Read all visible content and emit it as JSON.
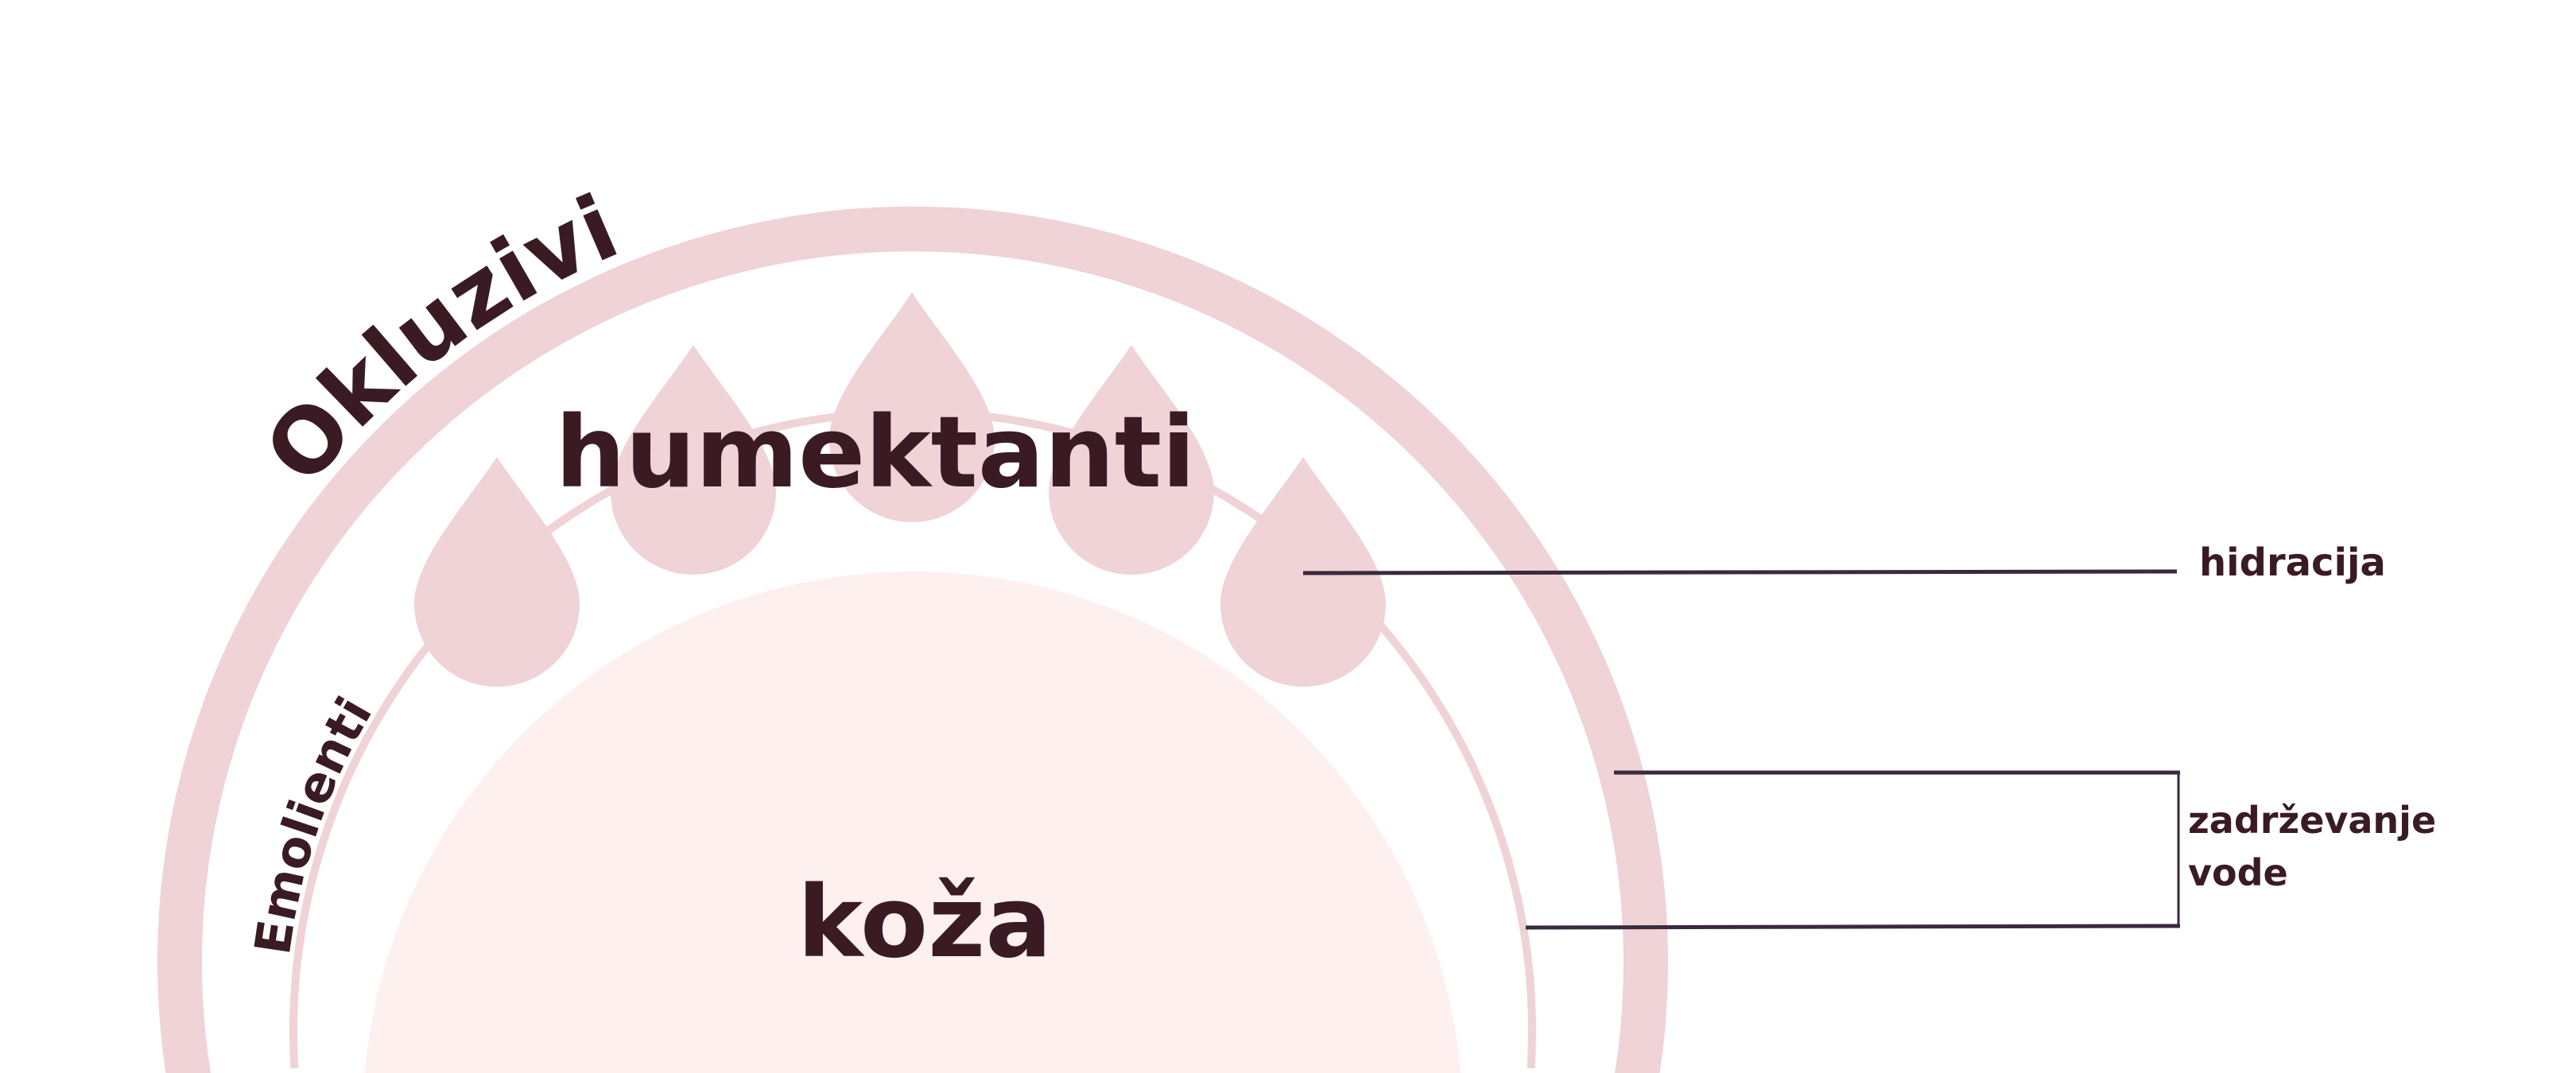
{
  "labels": {
    "occlusives": "Okluzivi",
    "emollients": "Emolienti",
    "humectants": "humektanti",
    "skin": "koža",
    "hydration": "hidracija",
    "water_retention_line1": "zadrževanje",
    "water_retention_line2": "vode"
  },
  "colors": {
    "ring": "#efd3d6",
    "skin": "#fdf0ee",
    "text": "#3a1b24",
    "line": "#3a2a3e"
  }
}
